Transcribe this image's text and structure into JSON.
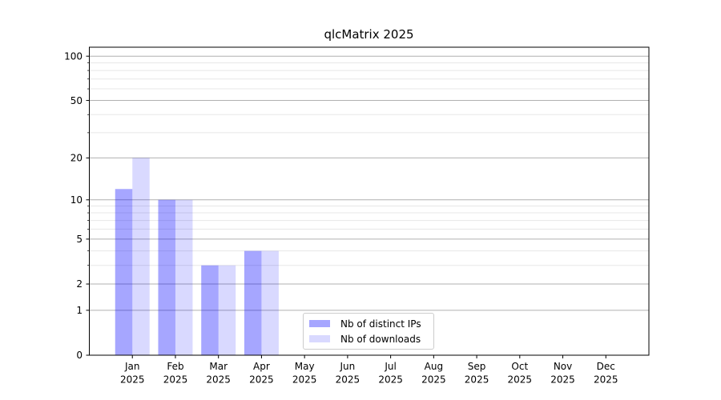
{
  "chart_data": {
    "type": "bar",
    "title": "qlcMatrix 2025",
    "x_axis": {
      "months": [
        "Jan",
        "Feb",
        "Mar",
        "Apr",
        "May",
        "Jun",
        "Jul",
        "Aug",
        "Sep",
        "Oct",
        "Nov",
        "Dec"
      ],
      "year": "2025"
    },
    "y_axis": {
      "scale": "log1p",
      "major_ticks": [
        0,
        1,
        2,
        5,
        10,
        20,
        50,
        100
      ],
      "minor_ticks": [
        3,
        4,
        6,
        7,
        8,
        9,
        30,
        40,
        60,
        70,
        80,
        90
      ],
      "ylim": [
        0,
        115
      ]
    },
    "series": [
      {
        "name": "Nb of distinct IPs",
        "color": "rgba(0,0,255,0.35)",
        "values": [
          12,
          10,
          3,
          4,
          0,
          0,
          0,
          0,
          0,
          0,
          0,
          0
        ]
      },
      {
        "name": "Nb of downloads",
        "color": "rgba(0,0,255,0.15)",
        "values": [
          20,
          10,
          3,
          4,
          0,
          0,
          0,
          0,
          0,
          0,
          0,
          0
        ]
      }
    ],
    "grid": {
      "major_color": "#b0b0b0",
      "minor_color": "#e7e7e7"
    },
    "frame_color": "#000000",
    "legend_position": "lower center"
  }
}
